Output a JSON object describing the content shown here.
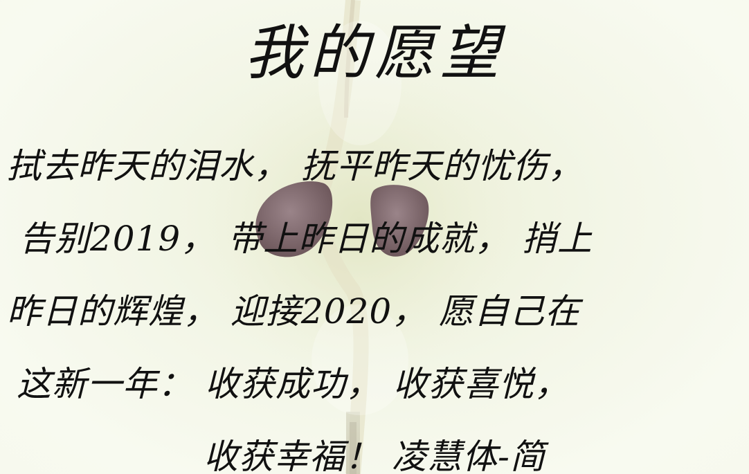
{
  "title": "我的愿望",
  "lines": [
    "拭去昨天的泪水，  抚平昨天的忧伤，",
    "告别2019，  带上昨日的成就，  捎上",
    "昨日的辉煌，  迎接2020，  愿自己在",
    "这新一年：  收获成功，  收获喜悦，",
    "收获幸福！  凌慧体-简"
  ],
  "colors": {
    "text": "#111111",
    "background": "#f3f6e7",
    "seed": "#7a6468"
  }
}
